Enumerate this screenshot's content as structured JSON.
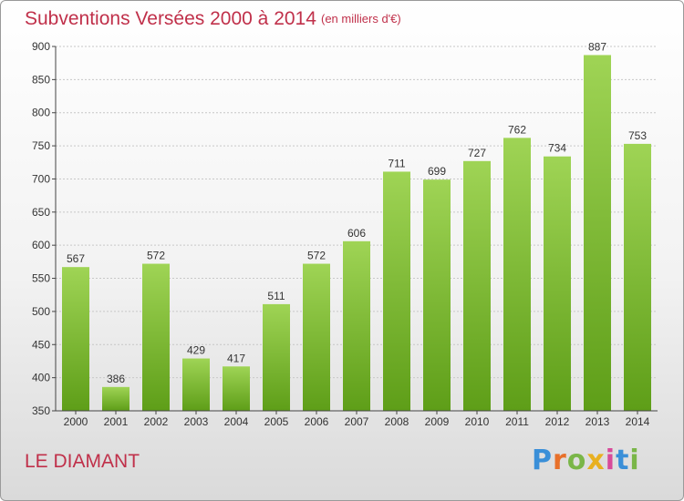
{
  "header": {
    "title": "Subventions Versées 2000 à 2014",
    "unit_note": "(en milliers d'€)"
  },
  "footer": {
    "commune": "LE DIAMANT",
    "brand": [
      "P",
      "r",
      "o",
      "x",
      "i",
      "t",
      "i"
    ],
    "brand_colors": [
      "#3a8fd8",
      "#e8702a",
      "#7ab648",
      "#e8b020",
      "#d84a9a",
      "#3a8fd8",
      "#7ab648"
    ]
  },
  "colors": {
    "title": "#c0304a",
    "bar_top": "#9fd455",
    "bar_bottom": "#5e9e18",
    "grid": "#c8c8c8",
    "axis": "#444444"
  },
  "chart_data": {
    "type": "bar",
    "categories": [
      "2000",
      "2001",
      "2002",
      "2003",
      "2004",
      "2005",
      "2006",
      "2007",
      "2008",
      "2009",
      "2010",
      "2011",
      "2012",
      "2013",
      "2014"
    ],
    "values": [
      567,
      386,
      572,
      429,
      417,
      511,
      572,
      606,
      711,
      699,
      727,
      762,
      734,
      887,
      753
    ],
    "yticks": [
      350,
      400,
      450,
      500,
      550,
      600,
      650,
      700,
      750,
      800,
      850,
      900
    ],
    "ylim": [
      350,
      900
    ],
    "grid": true,
    "data_labels": true
  }
}
